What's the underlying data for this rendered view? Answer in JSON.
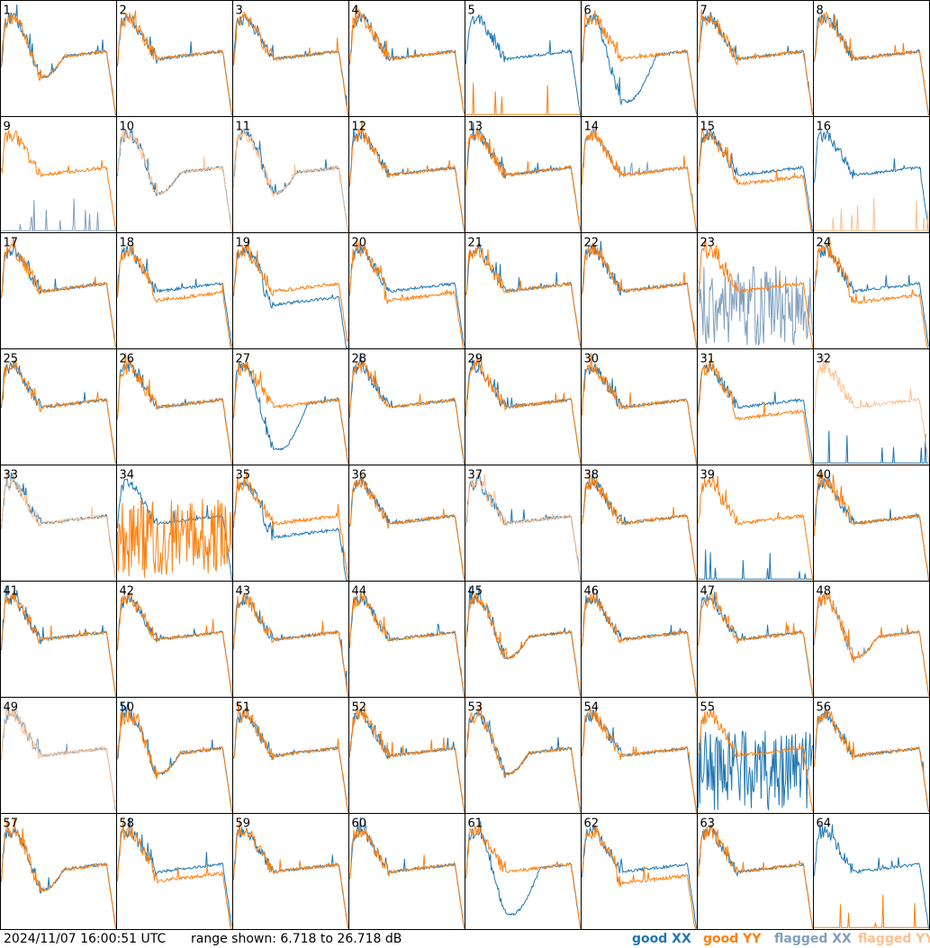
{
  "footer": {
    "timestamp": "2024/11/07 16:00:51 UTC",
    "range": "range shown: 6.718 to 26.718 dB",
    "legend": {
      "good_xx": "good XX",
      "good_yy": "good YY",
      "flagged_xx": "flagged XX",
      "flagged_yy": "flagged YY"
    }
  },
  "colors": {
    "good_xx": "#1f77b4",
    "good_yy": "#ff7f0e",
    "flagged_xx": "#7f9fbf",
    "flagged_yy": "#ffbf8f",
    "border": "#000000"
  },
  "chart_data": {
    "type": "line",
    "grid": "8x8 small multiples",
    "ylim_db": [
      6.718,
      26.718
    ],
    "panels": [
      {
        "label": "1",
        "xx": "good",
        "yy": "good",
        "shape": "dip"
      },
      {
        "label": "2",
        "xx": "good",
        "yy": "good",
        "shape": "normal"
      },
      {
        "label": "3",
        "xx": "good",
        "yy": "good",
        "shape": "normal"
      },
      {
        "label": "4",
        "xx": "good",
        "yy": "good",
        "shape": "normal"
      },
      {
        "label": "5",
        "xx": "good",
        "yy": "good",
        "shape": "yy_dead"
      },
      {
        "label": "6",
        "xx": "good",
        "yy": "good",
        "shape": "xx_deepdip"
      },
      {
        "label": "7",
        "xx": "good",
        "yy": "good",
        "shape": "normal"
      },
      {
        "label": "8",
        "xx": "good",
        "yy": "good",
        "shape": "normal"
      },
      {
        "label": "9",
        "xx": "flagged",
        "yy": "good",
        "shape": "xx_dead"
      },
      {
        "label": "10",
        "xx": "good",
        "yy": "flagged",
        "shape": "dip"
      },
      {
        "label": "11",
        "xx": "good",
        "yy": "flagged",
        "shape": "dip"
      },
      {
        "label": "12",
        "xx": "good",
        "yy": "good",
        "shape": "normal"
      },
      {
        "label": "13",
        "xx": "good",
        "yy": "good",
        "shape": "normal"
      },
      {
        "label": "14",
        "xx": "flagged",
        "yy": "good",
        "shape": "flat"
      },
      {
        "label": "15",
        "xx": "good",
        "yy": "good",
        "shape": "split"
      },
      {
        "label": "16",
        "xx": "good",
        "yy": "flagged",
        "shape": "yy_dead"
      },
      {
        "label": "17",
        "xx": "good",
        "yy": "good",
        "shape": "normal"
      },
      {
        "label": "18",
        "xx": "good",
        "yy": "good",
        "shape": "split"
      },
      {
        "label": "19",
        "xx": "good",
        "yy": "good",
        "shape": "xx_low"
      },
      {
        "label": "20",
        "xx": "good",
        "yy": "good",
        "shape": "split"
      },
      {
        "label": "21",
        "xx": "good",
        "yy": "good",
        "shape": "normal"
      },
      {
        "label": "22",
        "xx": "good",
        "yy": "good",
        "shape": "normal"
      },
      {
        "label": "23",
        "xx": "flagged",
        "yy": "good",
        "shape": "xx_noise"
      },
      {
        "label": "24",
        "xx": "good",
        "yy": "good",
        "shape": "yy_low"
      },
      {
        "label": "25",
        "xx": "good",
        "yy": "good",
        "shape": "normal"
      },
      {
        "label": "26",
        "xx": "good",
        "yy": "good",
        "shape": "normal"
      },
      {
        "label": "27",
        "xx": "good",
        "yy": "good",
        "shape": "xx_deepdip"
      },
      {
        "label": "28",
        "xx": "good",
        "yy": "good",
        "shape": "normal"
      },
      {
        "label": "29",
        "xx": "good",
        "yy": "good",
        "shape": "normal"
      },
      {
        "label": "30",
        "xx": "good",
        "yy": "good",
        "shape": "normal"
      },
      {
        "label": "31",
        "xx": "good",
        "yy": "good",
        "shape": "yy_low"
      },
      {
        "label": "32",
        "xx": "good",
        "yy": "flagged",
        "shape": "xx_dead"
      },
      {
        "label": "33",
        "xx": "good",
        "yy": "flagged",
        "shape": "flat"
      },
      {
        "label": "34",
        "xx": "good",
        "yy": "good",
        "shape": "yy_noise"
      },
      {
        "label": "35",
        "xx": "good",
        "yy": "good",
        "shape": "xx_low"
      },
      {
        "label": "36",
        "xx": "good",
        "yy": "good",
        "shape": "normal"
      },
      {
        "label": "37",
        "xx": "good",
        "yy": "flagged",
        "shape": "flat"
      },
      {
        "label": "38",
        "xx": "good",
        "yy": "good",
        "shape": "normal"
      },
      {
        "label": "39",
        "xx": "good",
        "yy": "good",
        "shape": "xx_dead"
      },
      {
        "label": "40",
        "xx": "good",
        "yy": "good",
        "shape": "normal"
      },
      {
        "label": "41",
        "xx": "good",
        "yy": "good",
        "shape": "normal"
      },
      {
        "label": "42",
        "xx": "good",
        "yy": "good",
        "shape": "normal"
      },
      {
        "label": "43",
        "xx": "good",
        "yy": "good",
        "shape": "normal"
      },
      {
        "label": "44",
        "xx": "good",
        "yy": "good",
        "shape": "normal"
      },
      {
        "label": "45",
        "xx": "good",
        "yy": "good",
        "shape": "dip"
      },
      {
        "label": "46",
        "xx": "good",
        "yy": "good",
        "shape": "normal"
      },
      {
        "label": "47",
        "xx": "good",
        "yy": "good",
        "shape": "normal"
      },
      {
        "label": "48",
        "xx": "flagged",
        "yy": "good",
        "shape": "dip"
      },
      {
        "label": "49",
        "xx": "flagged",
        "yy": "flagged",
        "shape": "flat"
      },
      {
        "label": "50",
        "xx": "good",
        "yy": "good",
        "shape": "dip"
      },
      {
        "label": "51",
        "xx": "good",
        "yy": "good",
        "shape": "normal"
      },
      {
        "label": "52",
        "xx": "good",
        "yy": "good",
        "shape": "normal"
      },
      {
        "label": "53",
        "xx": "good",
        "yy": "good",
        "shape": "dip"
      },
      {
        "label": "54",
        "xx": "good",
        "yy": "good",
        "shape": "normal"
      },
      {
        "label": "55",
        "xx": "good",
        "yy": "good",
        "shape": "xx_noise"
      },
      {
        "label": "56",
        "xx": "good",
        "yy": "good",
        "shape": "normal"
      },
      {
        "label": "57",
        "xx": "good",
        "yy": "good",
        "shape": "dip"
      },
      {
        "label": "58",
        "xx": "good",
        "yy": "good",
        "shape": "split"
      },
      {
        "label": "59",
        "xx": "good",
        "yy": "good",
        "shape": "normal"
      },
      {
        "label": "60",
        "xx": "good",
        "yy": "good",
        "shape": "normal"
      },
      {
        "label": "61",
        "xx": "good",
        "yy": "good",
        "shape": "xx_deepdip"
      },
      {
        "label": "62",
        "xx": "good",
        "yy": "good",
        "shape": "yy_low"
      },
      {
        "label": "63",
        "xx": "good",
        "yy": "good",
        "shape": "normal"
      },
      {
        "label": "64",
        "xx": "good",
        "yy": "good",
        "shape": "yy_dead"
      }
    ]
  }
}
